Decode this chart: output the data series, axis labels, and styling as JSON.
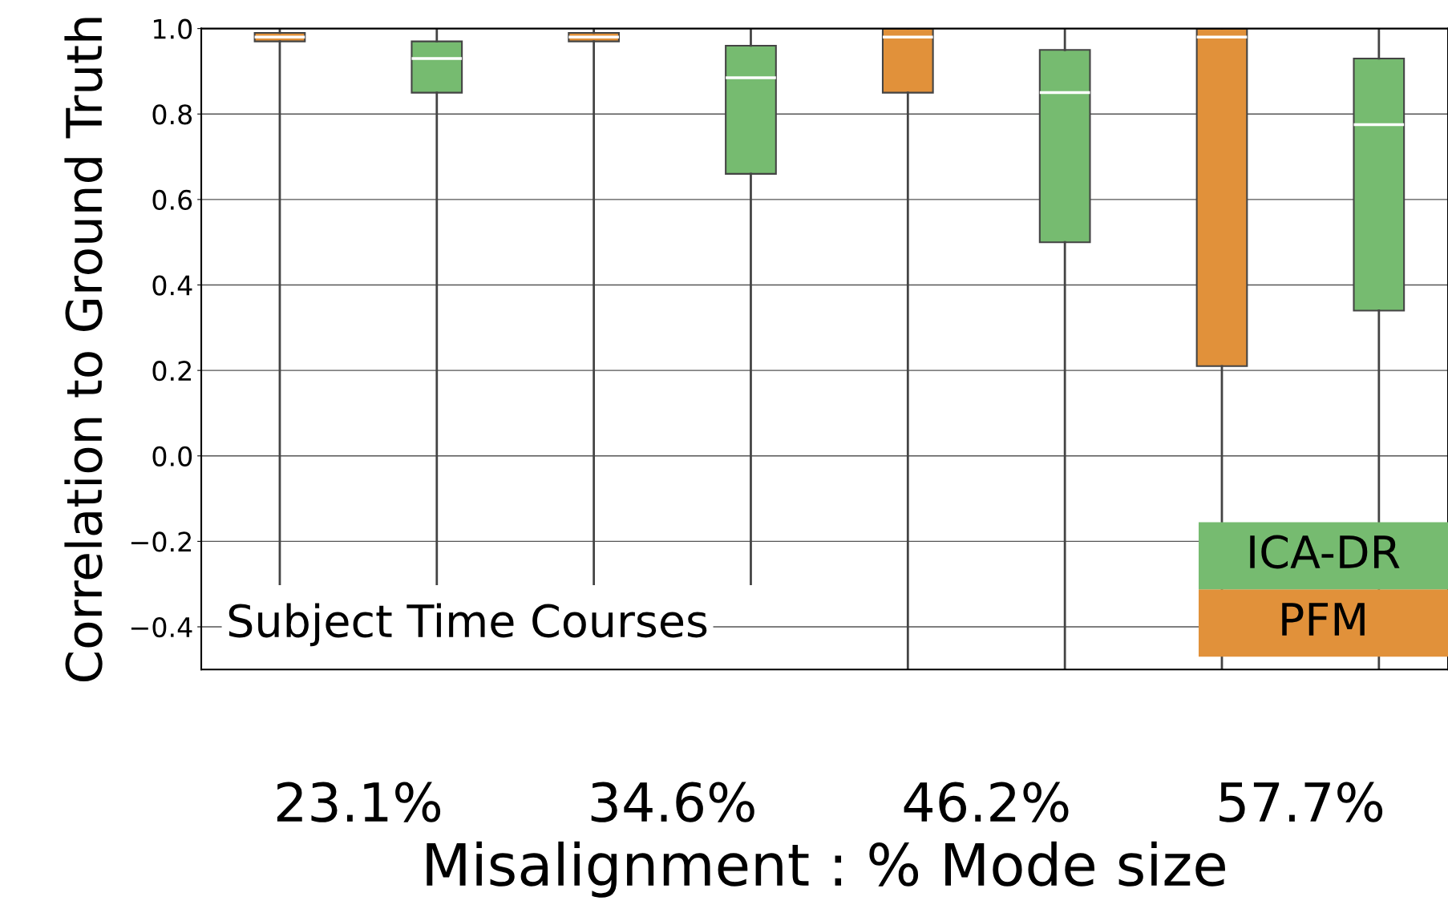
{
  "chart_data": {
    "type": "box",
    "xlabel": "Misalignment : % Mode size",
    "ylabel": "Correlation to Ground Truth",
    "categories": [
      "23.1%",
      "34.6%",
      "46.2%",
      "57.7%"
    ],
    "series": [
      {
        "name": "PFM",
        "color": "#e1913a",
        "boxes": [
          {
            "low": -0.3,
            "q1": 0.97,
            "median": 0.98,
            "q3": 0.99,
            "high": 1.0
          },
          {
            "low": -0.3,
            "q1": 0.97,
            "median": 0.98,
            "q3": 0.99,
            "high": 1.0
          },
          {
            "low": -0.5,
            "q1": 0.85,
            "median": 0.98,
            "q3": 1.0,
            "high": 1.0
          },
          {
            "low": -0.5,
            "q1": 0.21,
            "median": 0.98,
            "q3": 1.0,
            "high": 1.0
          }
        ]
      },
      {
        "name": "ICA-DR",
        "color": "#76bb70",
        "boxes": [
          {
            "low": -0.3,
            "q1": 0.85,
            "median": 0.93,
            "q3": 0.97,
            "high": 1.0
          },
          {
            "low": -0.3,
            "q1": 0.66,
            "median": 0.885,
            "q3": 0.96,
            "high": 1.0
          },
          {
            "low": -0.5,
            "q1": 0.5,
            "median": 0.85,
            "q3": 0.95,
            "high": 1.0
          },
          {
            "low": -0.5,
            "q1": 0.34,
            "median": 0.775,
            "q3": 0.93,
            "high": 1.0
          }
        ]
      }
    ],
    "ylim": [
      -0.5,
      1.0
    ],
    "yticks": [
      {
        "value": -0.4,
        "label": "−0.4"
      },
      {
        "value": -0.2,
        "label": "−0.2"
      },
      {
        "value": 0.0,
        "label": "0.0"
      },
      0.2,
      0.4,
      0.6,
      0.8,
      {
        "value": 1.0,
        "label": "1.0"
      }
    ],
    "grid": "y",
    "legend": "bottom right",
    "annotations": [
      "Subject Time Courses"
    ]
  }
}
